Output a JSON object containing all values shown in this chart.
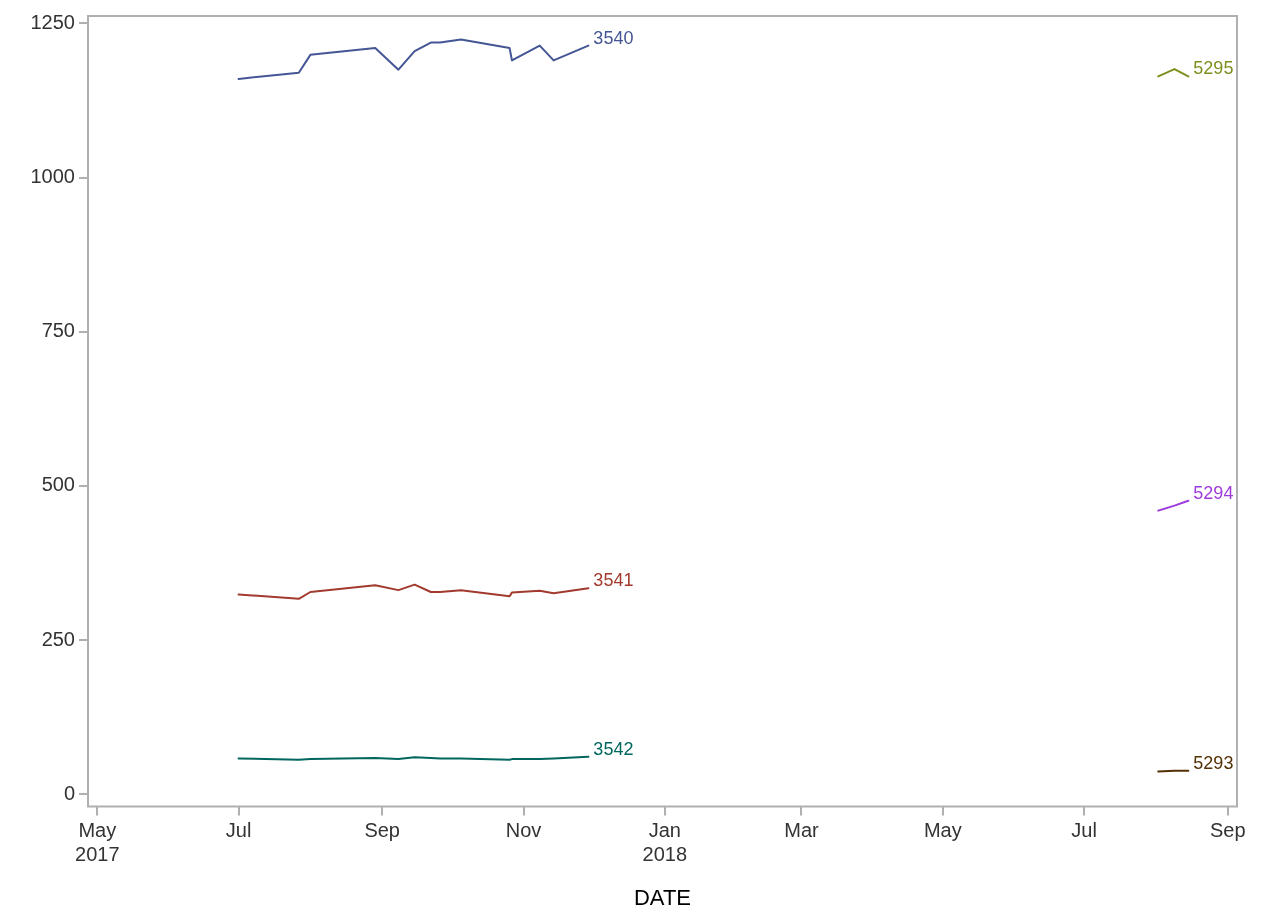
{
  "chart_data": {
    "type": "line",
    "xlabel": "DATE",
    "xlim": [
      "2017-04-27",
      "2018-09-05"
    ],
    "xticks": [
      {
        "value": "2017-05-01",
        "label": "May\n2017"
      },
      {
        "value": "2017-07-01",
        "label": "Jul"
      },
      {
        "value": "2017-09-01",
        "label": "Sep"
      },
      {
        "value": "2017-11-01",
        "label": "Nov"
      },
      {
        "value": "2018-01-01",
        "label": "Jan\n2018"
      },
      {
        "value": "2018-03-01",
        "label": "Mar"
      },
      {
        "value": "2018-05-01",
        "label": "May"
      },
      {
        "value": "2018-07-01",
        "label": "Jul"
      },
      {
        "value": "2018-09-01",
        "label": "Sep"
      }
    ],
    "ylim": [
      -20,
      1262
    ],
    "yticks": [
      0,
      250,
      500,
      750,
      1000,
      1250
    ],
    "grid": false,
    "legend": false,
    "marker": "none",
    "line_style": "solid",
    "series": [
      {
        "name": "3540",
        "color": "#445694",
        "x": [
          "2017-07-01",
          "2017-07-27",
          "2017-08-01",
          "2017-08-29",
          "2017-09-08",
          "2017-09-15",
          "2017-09-22",
          "2017-09-26",
          "2017-10-05",
          "2017-10-26",
          "2017-10-27",
          "2017-11-08",
          "2017-11-14",
          "2017-11-29"
        ],
        "values": [
          1160,
          1170,
          1199,
          1210,
          1175,
          1205,
          1219,
          1219,
          1224,
          1210,
          1190,
          1214,
          1190,
          1214
        ]
      },
      {
        "name": "3541",
        "color": "#a23a2e",
        "x": [
          "2017-07-01",
          "2017-07-27",
          "2017-08-01",
          "2017-08-29",
          "2017-09-08",
          "2017-09-15",
          "2017-09-22",
          "2017-09-26",
          "2017-10-05",
          "2017-10-26",
          "2017-10-27",
          "2017-11-08",
          "2017-11-14",
          "2017-11-29"
        ],
        "values": [
          324,
          317,
          328,
          339,
          331,
          340,
          328,
          328,
          331,
          321,
          327,
          330,
          326,
          334
        ]
      },
      {
        "name": "3542",
        "color": "#01665e",
        "x": [
          "2017-07-01",
          "2017-07-27",
          "2017-08-01",
          "2017-08-29",
          "2017-09-08",
          "2017-09-15",
          "2017-09-22",
          "2017-09-26",
          "2017-10-05",
          "2017-10-26",
          "2017-10-27",
          "2017-11-08",
          "2017-11-14",
          "2017-11-29"
        ],
        "values": [
          58,
          56,
          57,
          59,
          57,
          60,
          59,
          58,
          58,
          56,
          57,
          57,
          58,
          61
        ]
      },
      {
        "name": "5295",
        "color": "#7f8e1f",
        "x": [
          "2018-08-02",
          "2018-08-09",
          "2018-08-15"
        ],
        "values": [
          1164,
          1176,
          1164
        ]
      },
      {
        "name": "5294",
        "color": "#9d3cdb",
        "x": [
          "2018-08-02",
          "2018-08-09",
          "2018-08-15"
        ],
        "values": [
          460,
          468,
          476
        ]
      },
      {
        "name": "5293",
        "color": "#543005",
        "x": [
          "2018-08-02",
          "2018-08-09",
          "2018-08-15"
        ],
        "values": [
          37,
          38,
          38
        ]
      }
    ]
  }
}
